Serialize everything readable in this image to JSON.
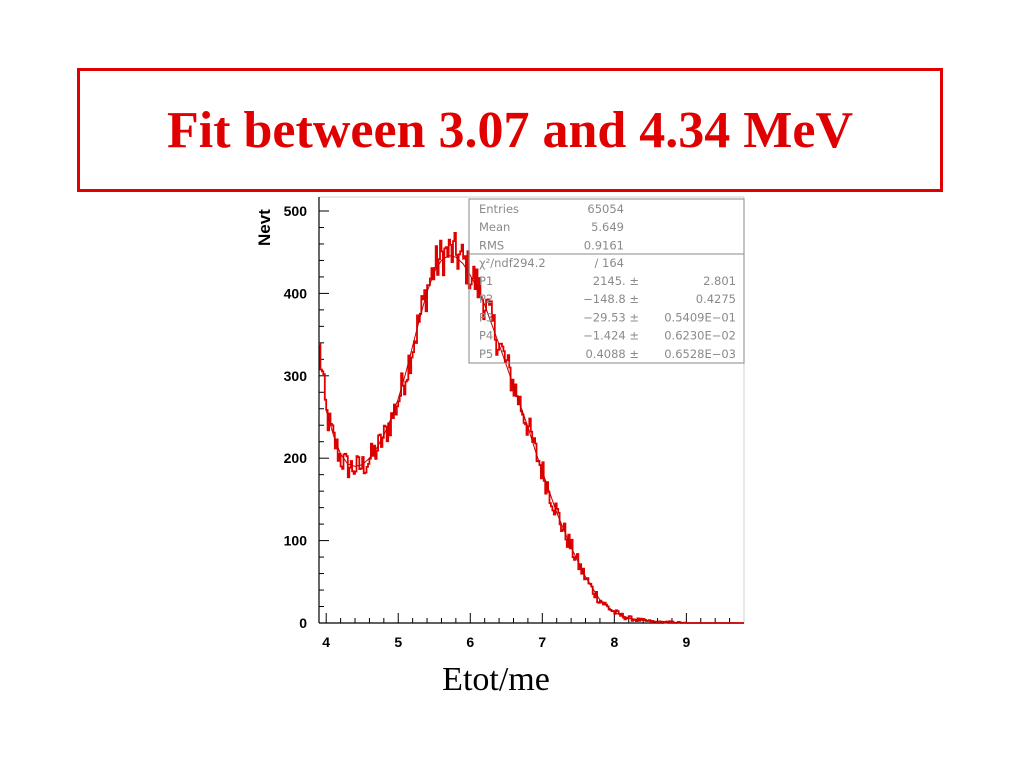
{
  "title": "Fit between 3.07 and 4.34 MeV",
  "colors": {
    "accent": "#e00000",
    "histogram": "#e00000",
    "fit": "#c00000",
    "stats_text": "#8a8a8a",
    "axis": "#000000"
  },
  "chart_data": {
    "type": "line",
    "title": "",
    "xlabel": "Etot/me",
    "ylabel": "Nevt",
    "xlim": [
      3.9,
      9.8
    ],
    "ylim": [
      0,
      500
    ],
    "x_ticks": [
      4,
      5,
      6,
      7,
      8,
      9
    ],
    "y_ticks": [
      0,
      100,
      200,
      300,
      400,
      500
    ],
    "grid": false,
    "series": [
      {
        "x": [
          3.9,
          3.95,
          4.0,
          4.1,
          4.2,
          4.3,
          4.4,
          4.5,
          4.6,
          4.7,
          4.8,
          4.9,
          5.0,
          5.1,
          5.2,
          5.3,
          5.4,
          5.5,
          5.6,
          5.7,
          5.8,
          5.9,
          6.0,
          6.1,
          6.2,
          6.3,
          6.4,
          6.5,
          6.6,
          6.7,
          6.8,
          6.9,
          7.0,
          7.1,
          7.2,
          7.3,
          7.4,
          7.5,
          7.6,
          7.7,
          7.8,
          7.9,
          8.0,
          8.1,
          8.2,
          8.3,
          8.4,
          8.5,
          8.6,
          8.7,
          8.8,
          9.0,
          9.2,
          9.4,
          9.6,
          9.8
        ],
        "values": [
          340,
          300,
          255,
          225,
          200,
          190,
          188,
          190,
          198,
          210,
          225,
          245,
          270,
          300,
          335,
          370,
          405,
          430,
          445,
          450,
          448,
          440,
          425,
          410,
          390,
          365,
          340,
          315,
          290,
          265,
          240,
          210,
          185,
          160,
          135,
          112,
          92,
          72,
          55,
          40,
          28,
          20,
          13,
          9,
          6,
          4,
          3,
          2,
          1,
          1,
          1,
          0,
          0,
          0,
          0,
          0
        ]
      },
      {
        "x": [
          4.0,
          4.1,
          4.2,
          4.3,
          4.4,
          4.5,
          4.6,
          4.7,
          4.8,
          4.9,
          5.0,
          5.1,
          5.2,
          5.3,
          5.4,
          5.5,
          5.6,
          5.7,
          5.8,
          5.9,
          6.0,
          6.1,
          6.2,
          6.3,
          6.4,
          6.5,
          6.6,
          6.7,
          6.8,
          6.9,
          7.0,
          7.2,
          7.4,
          7.6,
          7.8,
          8.0,
          8.2,
          8.4,
          8.6,
          8.8,
          9.0,
          9.4,
          9.8
        ],
        "values": [
          258,
          228,
          205,
          193,
          190,
          192,
          200,
          212,
          228,
          248,
          272,
          302,
          336,
          370,
          402,
          426,
          440,
          446,
          444,
          436,
          422,
          406,
          386,
          362,
          338,
          313,
          288,
          263,
          238,
          210,
          184,
          134,
          92,
          56,
          28,
          13,
          6,
          3,
          1,
          1,
          0,
          0,
          0
        ]
      }
    ],
    "stats": {
      "rows1": [
        {
          "label": "Entries",
          "value": "65054",
          "error": ""
        },
        {
          "label": "Mean",
          "value": "5.649",
          "error": ""
        },
        {
          "label": "RMS",
          "value": "0.9161",
          "error": ""
        }
      ],
      "chi2_label": "χ²/ndf294.2",
      "chi2_value": "/  164",
      "rows2": [
        {
          "label": "P1",
          "value": "2145. ±",
          "error": "2.801"
        },
        {
          "label": "P2",
          "value": "−148.8 ±",
          "error": "0.4275"
        },
        {
          "label": "P3",
          "value": "−29.53 ±",
          "error": "0.5409E−01"
        },
        {
          "label": "P4",
          "value": "−1.424 ±",
          "error": "0.6230E−02"
        },
        {
          "label": "P5",
          "value": "0.4088 ±",
          "error": "0.6528E−03"
        }
      ]
    }
  }
}
